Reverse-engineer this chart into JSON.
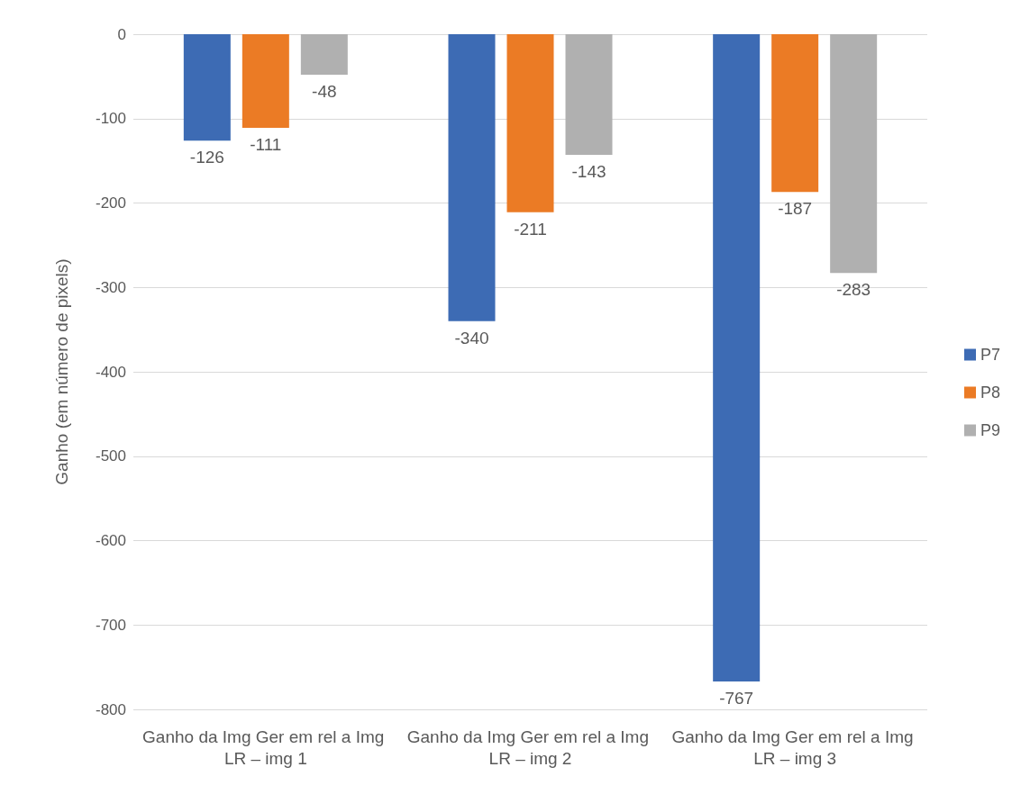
{
  "chart_data": {
    "type": "bar",
    "ylabel": "Ganho (em número de pixels)",
    "categories": [
      "Ganho da Img Ger em rel a Img LR – img 1",
      "Ganho da Img Ger em rel a Img LR – img 2",
      "Ganho da Img Ger em rel a Img LR – img 3"
    ],
    "series": [
      {
        "name": "P7",
        "color": "#3d6bb4",
        "values": [
          -126,
          -340,
          -767
        ]
      },
      {
        "name": "P8",
        "color": "#eb7b25",
        "values": [
          -111,
          -211,
          -187
        ]
      },
      {
        "name": "P9",
        "color": "#b0b0b0",
        "values": [
          -48,
          -143,
          -283
        ]
      }
    ],
    "ylim": [
      -800,
      0
    ],
    "yticks": [
      -800,
      -700,
      -600,
      -500,
      -400,
      -300,
      -200,
      -100,
      0
    ],
    "grid": "y",
    "legend": "right",
    "data_labels": true
  }
}
